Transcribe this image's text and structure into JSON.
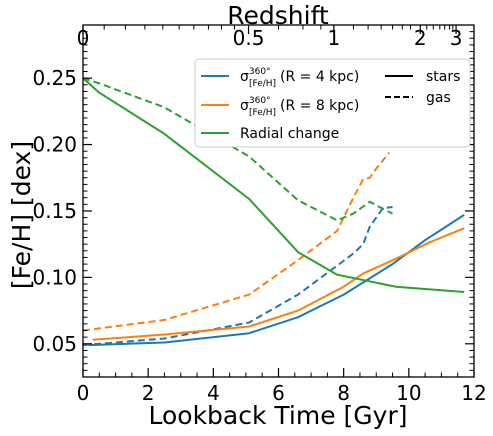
{
  "chart_data": {
    "type": "line",
    "xlabel": "Lookback Time [Gyr]",
    "ylabel": "[Fe/H] [dex]",
    "top_axis_label": "Redshift",
    "xlim": [
      0,
      12
    ],
    "ylim": [
      0.025,
      0.29
    ],
    "x_ticks": [
      0,
      2,
      4,
      6,
      8,
      10,
      12
    ],
    "x_tick_labels": [
      "0",
      "2",
      "4",
      "6",
      "8",
      "10",
      "12"
    ],
    "y_ticks": [
      0.05,
      0.1,
      0.15,
      0.2,
      0.25
    ],
    "y_tick_labels": [
      "0.05",
      "0.10",
      "0.15",
      "0.20",
      "0.25"
    ],
    "top_ticks": [
      {
        "label": "0",
        "z": 0,
        "t": 0.0
      },
      {
        "label": "0.5",
        "z": 0.5,
        "t": 5.08
      },
      {
        "label": "1",
        "z": 1,
        "t": 7.7
      },
      {
        "label": "2",
        "z": 2,
        "t": 10.35
      },
      {
        "label": "3",
        "z": 3,
        "t": 11.45
      }
    ],
    "legend": {
      "placement": "top-right",
      "entries": [
        {
          "label_prefix": "σ",
          "label_sup": "360°",
          "label_sub": "[Fe/H]",
          "label_suffix": "(R = 4 kpc)",
          "color": "#1f77b4",
          "style": "line"
        },
        {
          "label_prefix": "σ",
          "label_sup": "360°",
          "label_sub": "[Fe/H]",
          "label_suffix": "(R = 8 kpc)",
          "color": "#ff7f0e",
          "style": "line"
        },
        {
          "label": "Radial change",
          "color": "#2ca02c",
          "style": "line"
        },
        {
          "label": "stars",
          "color": "#000000",
          "style": "solid"
        },
        {
          "label": "gas",
          "color": "#000000",
          "style": "dashed"
        }
      ]
    },
    "series": [
      {
        "key": "r4_stars",
        "color": "#1f77b4",
        "dash": false,
        "points": [
          [
            0.2,
            0.049
          ],
          [
            2.5,
            0.051
          ],
          [
            5.1,
            0.058
          ],
          [
            6.6,
            0.07
          ],
          [
            8.0,
            0.087
          ],
          [
            9.5,
            0.11
          ],
          [
            10.5,
            0.128
          ],
          [
            11.7,
            0.147
          ]
        ]
      },
      {
        "key": "r4_gas",
        "color": "#1f77b4",
        "dash": true,
        "points": [
          [
            0.0,
            0.049
          ],
          [
            2.5,
            0.054
          ],
          [
            5.1,
            0.066
          ],
          [
            6.6,
            0.087
          ],
          [
            7.7,
            0.107
          ],
          [
            8.3,
            0.118
          ],
          [
            8.6,
            0.125
          ],
          [
            8.8,
            0.138
          ],
          [
            9.0,
            0.145
          ],
          [
            9.2,
            0.152
          ],
          [
            9.5,
            0.153
          ]
        ]
      },
      {
        "key": "r8_stars",
        "color": "#ff7f0e",
        "dash": false,
        "points": [
          [
            0.3,
            0.053
          ],
          [
            2.5,
            0.057
          ],
          [
            5.1,
            0.063
          ],
          [
            6.6,
            0.075
          ],
          [
            8.0,
            0.093
          ],
          [
            8.6,
            0.103
          ],
          [
            9.6,
            0.114
          ],
          [
            10.6,
            0.126
          ],
          [
            11.7,
            0.137
          ]
        ]
      },
      {
        "key": "r8_gas",
        "color": "#ff7f0e",
        "dash": true,
        "points": [
          [
            0.0,
            0.06
          ],
          [
            2.5,
            0.068
          ],
          [
            5.1,
            0.087
          ],
          [
            6.6,
            0.113
          ],
          [
            7.8,
            0.135
          ],
          [
            8.3,
            0.16
          ],
          [
            8.6,
            0.174
          ],
          [
            8.8,
            0.175
          ],
          [
            9.0,
            0.182
          ],
          [
            9.4,
            0.194
          ]
        ]
      },
      {
        "key": "radial_stars",
        "color": "#2ca02c",
        "dash": false,
        "points": [
          [
            0.0,
            0.25
          ],
          [
            0.5,
            0.239
          ],
          [
            2.5,
            0.208
          ],
          [
            5.1,
            0.159
          ],
          [
            6.6,
            0.119
          ],
          [
            7.8,
            0.102
          ],
          [
            9.6,
            0.093
          ],
          [
            11.7,
            0.089
          ]
        ]
      },
      {
        "key": "radial_gas",
        "color": "#2ca02c",
        "dash": true,
        "points": [
          [
            0.0,
            0.25
          ],
          [
            0.5,
            0.246
          ],
          [
            2.5,
            0.228
          ],
          [
            5.1,
            0.191
          ],
          [
            6.6,
            0.158
          ],
          [
            7.8,
            0.143
          ],
          [
            8.3,
            0.148
          ],
          [
            8.8,
            0.157
          ],
          [
            9.1,
            0.153
          ],
          [
            9.5,
            0.148
          ]
        ]
      }
    ]
  }
}
